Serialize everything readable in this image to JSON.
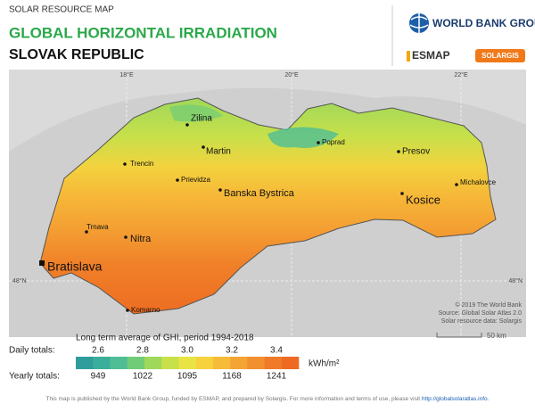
{
  "header": {
    "kicker": "SOLAR RESOURCE MAP",
    "title": "GLOBAL HORIZONTAL IRRADIATION",
    "country": "SLOVAK REPUBLIC"
  },
  "logos": {
    "wbg": "WORLD BANK GROUP",
    "esmap": "ESMAP",
    "solargis": "SOLARGIS"
  },
  "map": {
    "graticule": [
      "18°E",
      "20°E",
      "22°E",
      "48°N",
      "48°N"
    ],
    "cities": [
      "Zilina",
      "Martin",
      "Trencin",
      "Poprad",
      "Presov",
      "Prievidza",
      "Banska Bystrica",
      "Kosice",
      "Michalovce",
      "Trnava",
      "Nitra",
      "Bratislava",
      "Komarno"
    ],
    "credits": [
      "© 2019 The World Bank",
      "Source: Global Solar Atlas 2.0",
      "Solar resource data: Solargis"
    ],
    "scale": "50 km"
  },
  "legend": {
    "title": "Long term average of GHI, period 1994-2018",
    "daily_label": "Daily totals:",
    "daily": [
      "2.6",
      "2.8",
      "3.0",
      "3.2",
      "3.4"
    ],
    "yearly_label": "Yearly totals:",
    "yearly": [
      "949",
      "1022",
      "1095",
      "1168",
      "1241"
    ],
    "unit": "kWh/m²",
    "colors": [
      "#2f9e9b",
      "#3aae9a",
      "#4fbe95",
      "#71cc77",
      "#9fd85a",
      "#c8e04a",
      "#e8e443",
      "#f8d23e",
      "#f6bb38",
      "#f4a433",
      "#f28f2e",
      "#f07a27",
      "#ee6a22"
    ]
  },
  "footer": {
    "text": "This map is published by the World Bank Group, funded by ESMAP, and prepared by Solargis. For more information and terms of use, please visit ",
    "link": "http://globalsolaratlas.info",
    "end": "."
  }
}
